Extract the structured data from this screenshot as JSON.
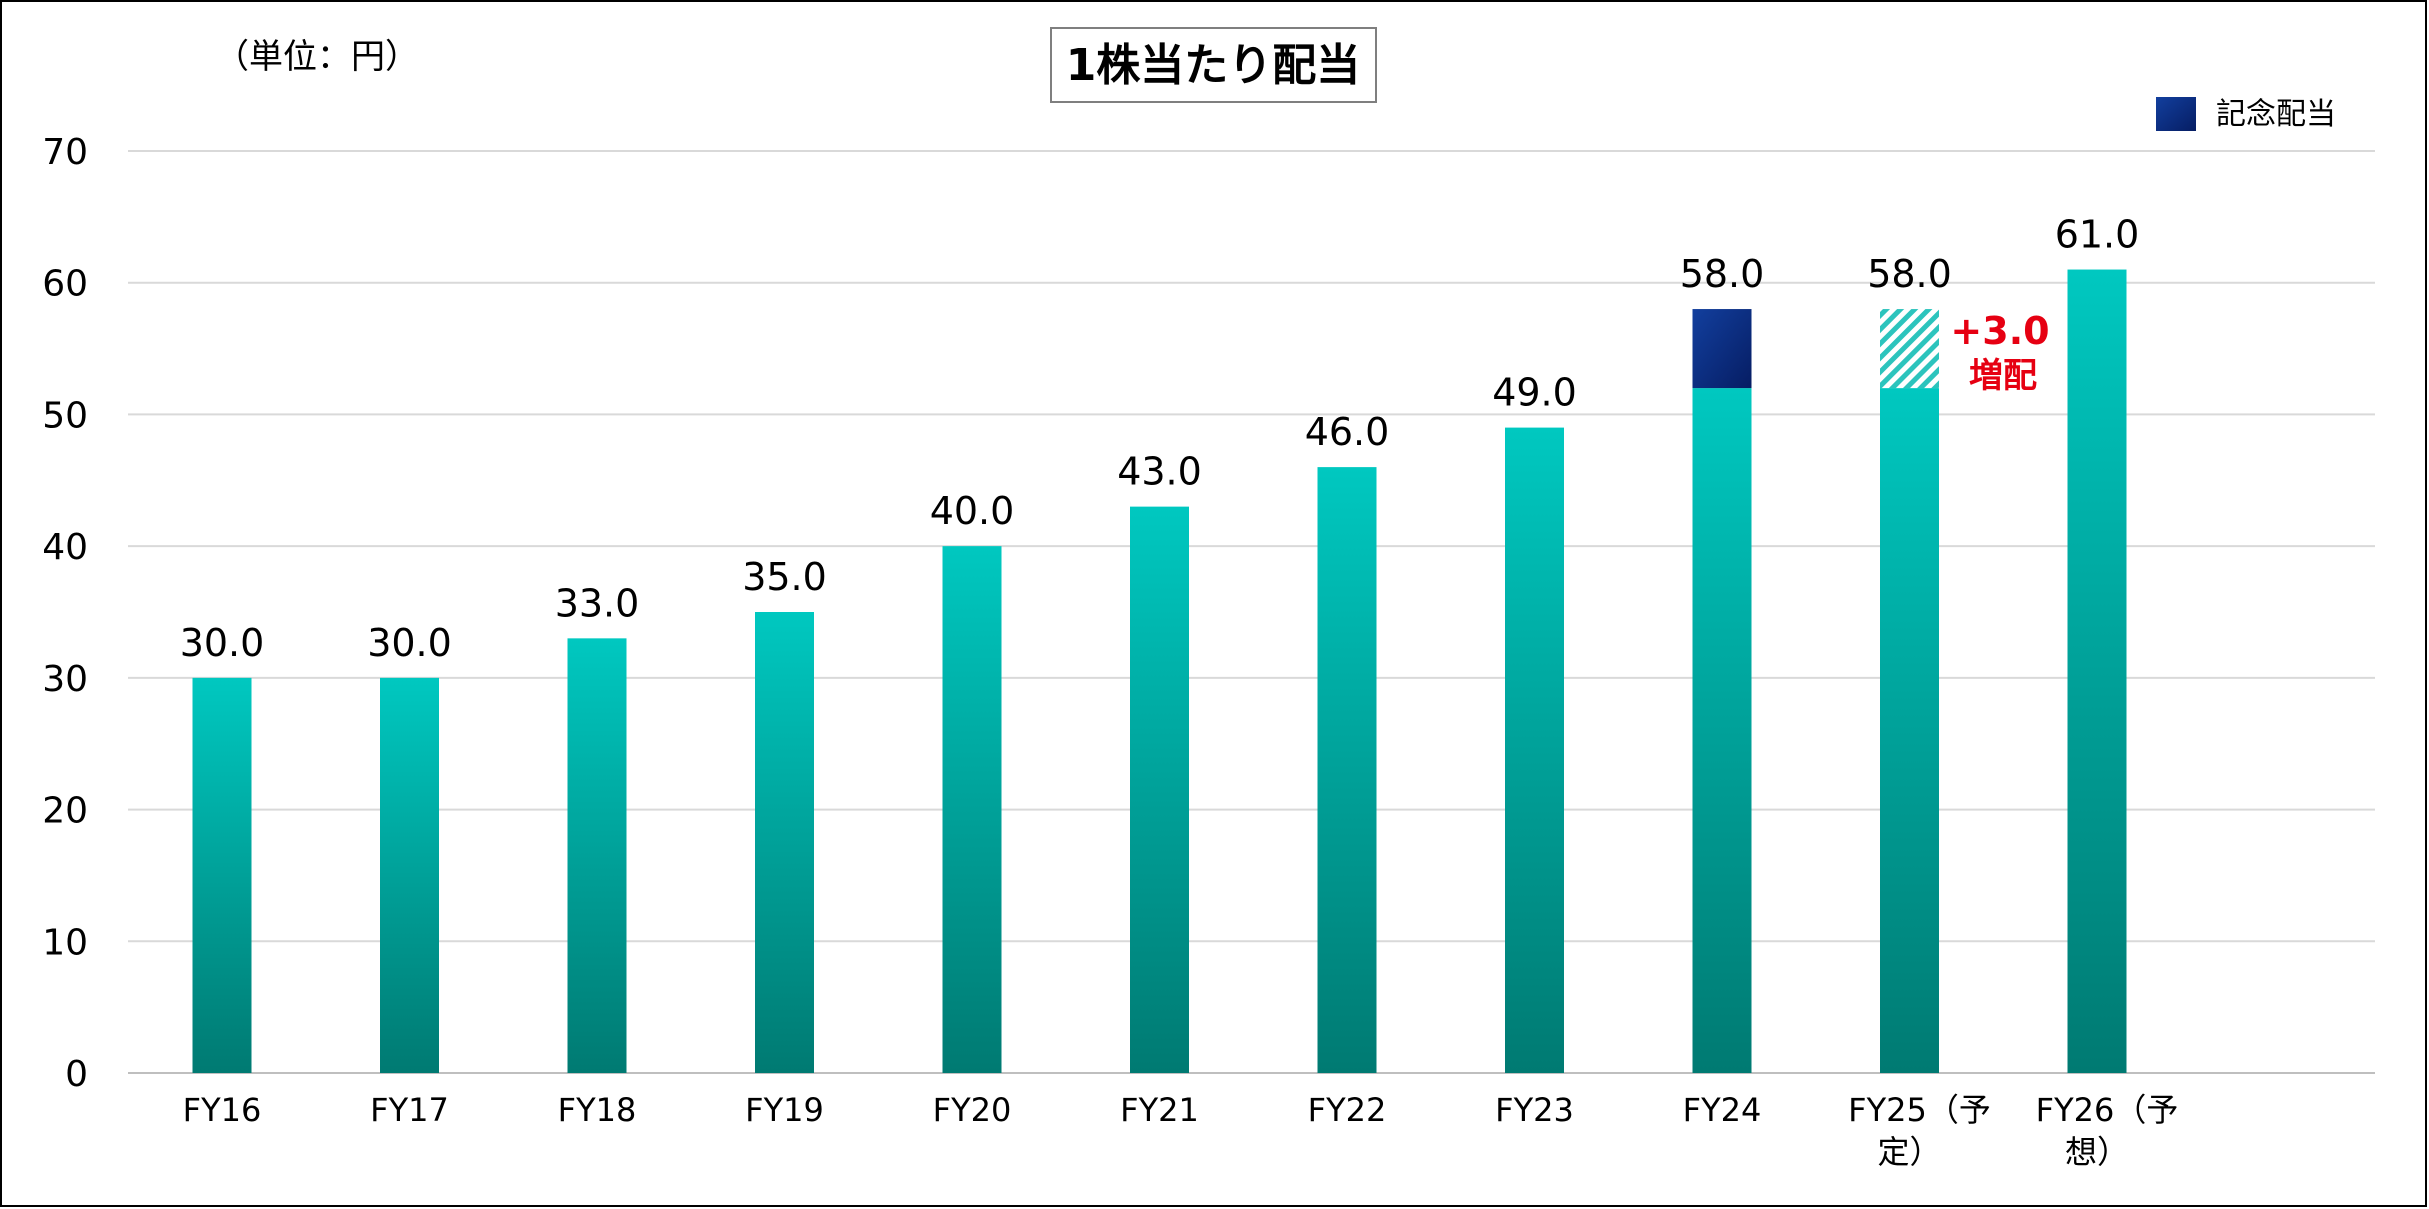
{
  "chart_data": {
    "type": "bar",
    "title": "1株当たり配当",
    "unit_label": "（単位：円）",
    "categories": [
      "FY16",
      "FY17",
      "FY18",
      "FY19",
      "FY20",
      "FY21",
      "FY22",
      "FY23",
      "FY24",
      "FY25（予定）",
      "FY26（予想）"
    ],
    "series": [
      {
        "values": [
          30.0,
          30.0,
          33.0,
          35.0,
          40.0,
          43.0,
          46.0,
          49.0,
          52.0,
          52.0,
          61.0
        ],
        "color": "#00a99d"
      },
      {
        "name": "記念配当",
        "values": [
          0,
          0,
          0,
          0,
          0,
          0,
          0,
          0,
          6.0,
          0,
          0
        ],
        "color": "#0b2f8a"
      },
      {
        "values": [
          0,
          0,
          0,
          0,
          0,
          0,
          0,
          0,
          0,
          6.0,
          0
        ],
        "color": "#2cc4bd",
        "pattern": "hatched"
      }
    ],
    "totals": [
      "30.0",
      "30.0",
      "33.0",
      "35.0",
      "40.0",
      "43.0",
      "46.0",
      "49.0",
      "58.0",
      "58.0",
      "61.0"
    ],
    "annotation": {
      "category": "FY25（予定）",
      "line1": "+3.0",
      "line2": "増配",
      "color": "#e60012"
    },
    "ylim": [
      0,
      70
    ],
    "yticks": [
      0,
      10,
      20,
      30,
      40,
      50,
      60,
      70
    ],
    "grid": true,
    "legend_position": "top-right",
    "colors": {
      "bar_top": "#00c8c0",
      "bar_bottom": "#007a72",
      "commemorative": "#0b2f8a",
      "increase_text": "#e60012"
    }
  }
}
